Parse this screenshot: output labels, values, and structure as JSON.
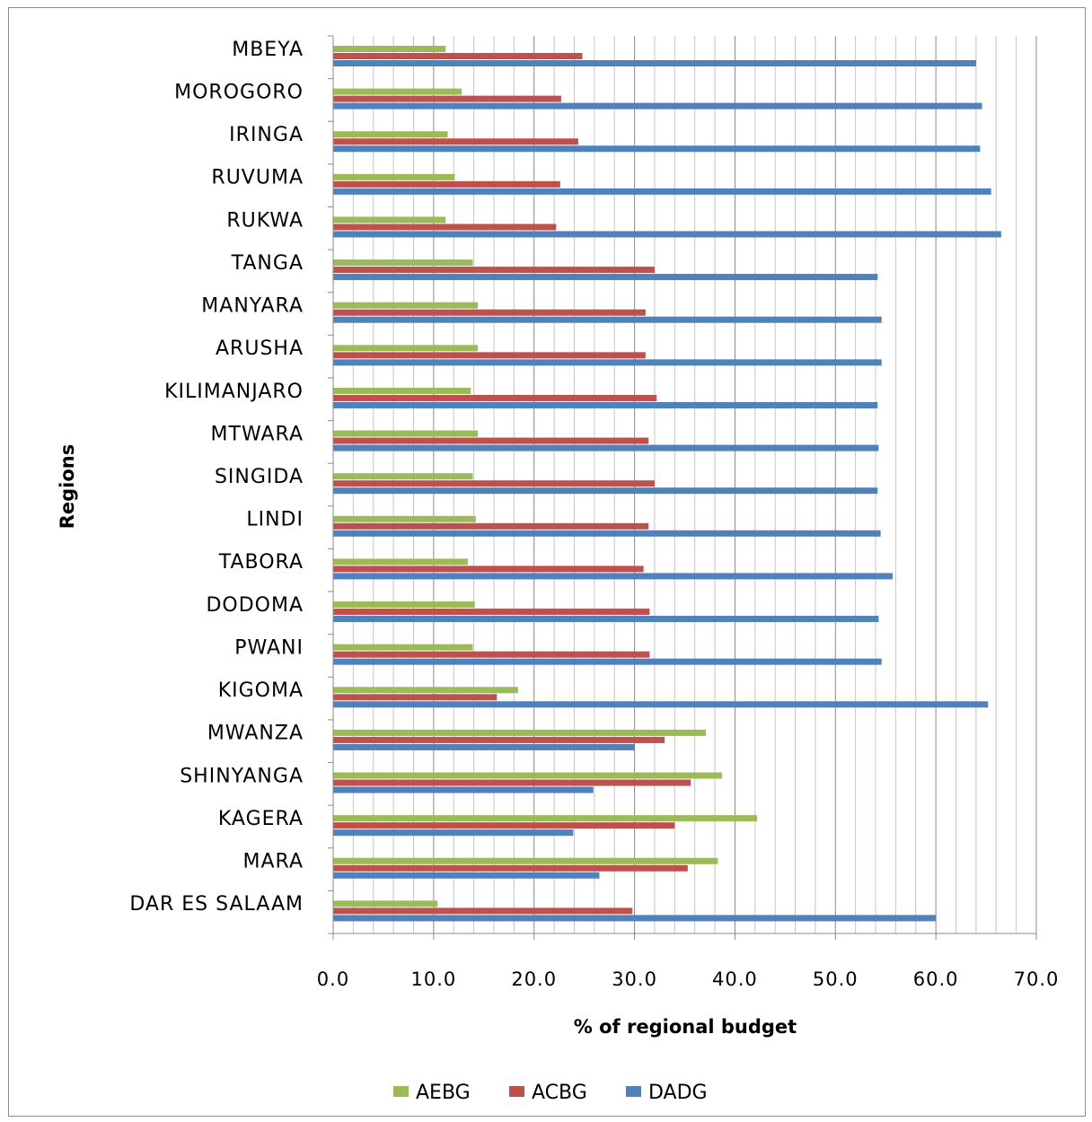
{
  "chart_data": {
    "type": "bar",
    "orientation": "horizontal",
    "title": "",
    "xlabel": "% of regional budget",
    "ylabel": "Regions",
    "xlim": [
      0,
      70
    ],
    "xticks": [
      "0.0",
      "10.0",
      "20.0",
      "30.0",
      "40.0",
      "50.0",
      "60.0",
      "70.0"
    ],
    "grid": "vertical minor lines every 2.0",
    "legend_position": "bottom",
    "categories": [
      "MBEYA",
      "MOROGORO",
      "IRINGA",
      "RUVUMA",
      "RUKWA",
      "TANGA",
      "MANYARA",
      "ARUSHA",
      "KILIMANJARO",
      "MTWARA",
      "SINGIDA",
      "LINDI",
      "TABORA",
      "DODOMA",
      "PWANI",
      "KIGOMA",
      "MWANZA",
      "SHINYANGA",
      "KAGERA",
      "MARA",
      "DAR ES SALAAM"
    ],
    "series": [
      {
        "name": "AEBG",
        "color": "#9bbb59",
        "values": [
          11.2,
          12.8,
          11.4,
          12.1,
          11.2,
          13.9,
          14.4,
          14.4,
          13.7,
          14.4,
          13.9,
          14.2,
          13.4,
          14.1,
          13.9,
          18.4,
          37.1,
          38.7,
          42.2,
          38.3,
          10.4
        ]
      },
      {
        "name": "ACBG",
        "color": "#c0504d",
        "values": [
          24.8,
          22.7,
          24.4,
          22.6,
          22.2,
          32.0,
          31.1,
          31.1,
          32.2,
          31.4,
          32.0,
          31.4,
          30.9,
          31.5,
          31.5,
          16.3,
          33.0,
          35.6,
          34.0,
          35.3,
          29.8
        ]
      },
      {
        "name": "DADG",
        "color": "#4f81bd",
        "values": [
          64.0,
          64.6,
          64.4,
          65.5,
          66.5,
          54.2,
          54.6,
          54.6,
          54.2,
          54.3,
          54.2,
          54.5,
          55.7,
          54.3,
          54.6,
          65.2,
          30.0,
          25.9,
          23.9,
          26.5,
          60.0
        ]
      }
    ]
  }
}
